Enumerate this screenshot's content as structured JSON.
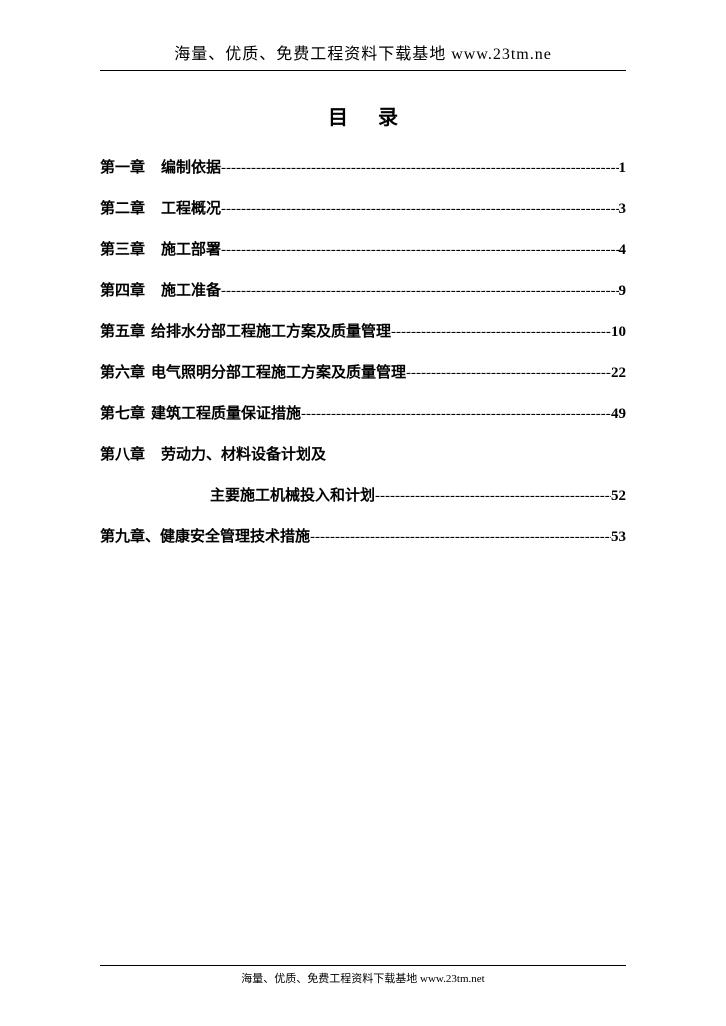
{
  "header": {
    "text": "海量、优质、免费工程资料下载基地 www.23tm.ne"
  },
  "toc": {
    "title": "目录",
    "entries": [
      {
        "chapter": "第一章",
        "name": "编制依据",
        "page": "1",
        "spacing": "16px"
      },
      {
        "chapter": "第二章",
        "name": "工程概况",
        "page": "3",
        "spacing": "16px"
      },
      {
        "chapter": "第三章",
        "name": "施工部署",
        "page": "4",
        "spacing": "16px"
      },
      {
        "chapter": "第四章",
        "name": "施工准备",
        "page": "9",
        "spacing": "16px"
      },
      {
        "chapter": "第五章",
        "name": "给排水分部工程施工方案及质量管理",
        "page": "10",
        "spacing": "6px"
      },
      {
        "chapter": "第六章",
        "name": "电气照明分部工程施工方案及质量管理",
        "page": "22",
        "spacing": "6px"
      },
      {
        "chapter": "第七章",
        "name": "建筑工程质量保证措施",
        "page": "49",
        "spacing": "6px"
      },
      {
        "chapter": "第八章",
        "name": "劳动力、材料设备计划及",
        "page": "",
        "spacing": "16px",
        "nopage": true
      },
      {
        "sub": true,
        "name": "主要施工机械投入和计划",
        "page": "52"
      },
      {
        "chapter": "第九章、",
        "name": "健康安全管理技术措施",
        "page": "53",
        "spacing": "0px"
      }
    ]
  },
  "footer": {
    "text": "海量、优质、免费工程资料下载基地 www.23tm.net"
  },
  "styling": {
    "background_color": "#ffffff",
    "text_color": "#000000",
    "font_family": "SimSun",
    "dot_char": "-"
  }
}
